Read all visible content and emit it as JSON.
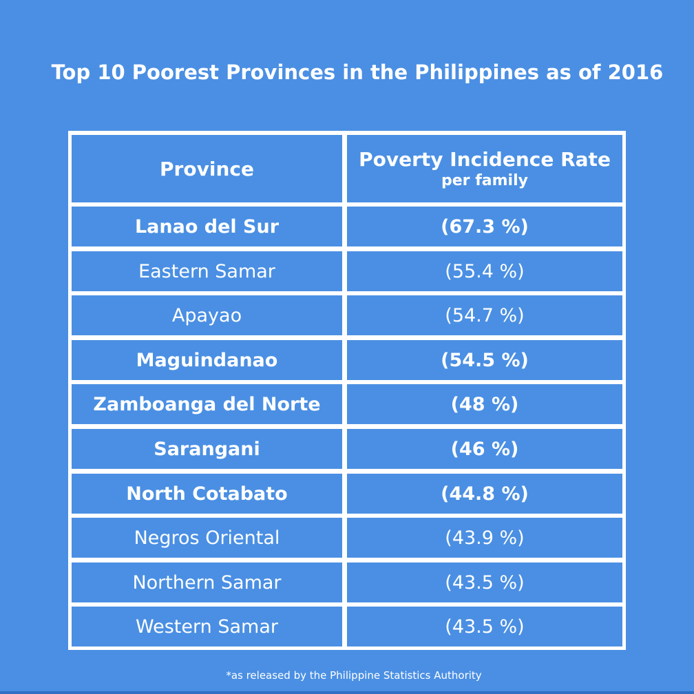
{
  "title": "Top 10 Poorest Provinces in the Philippines as of 2016",
  "table": {
    "header": {
      "province": "Province",
      "rate_main": "Poverty Incidence Rate",
      "rate_sub": "per family"
    },
    "rows": [
      {
        "province": "Lanao del Sur",
        "rate": "(67.3 %)",
        "bold": true
      },
      {
        "province": "Eastern Samar",
        "rate": "(55.4 %)",
        "bold": false
      },
      {
        "province": "Apayao",
        "rate": "(54.7 %)",
        "bold": false
      },
      {
        "province": "Maguindanao",
        "rate": "(54.5 %)",
        "bold": true
      },
      {
        "province": "Zamboanga del Norte",
        "rate": "(48 %)",
        "bold": true
      },
      {
        "province": "Sarangani",
        "rate": "(46 %)",
        "bold": true
      },
      {
        "province": "North Cotabato",
        "rate": "(44.8 %)",
        "bold": true
      },
      {
        "province": "Negros Oriental",
        "rate": "(43.9 %)",
        "bold": false
      },
      {
        "province": "Northern Samar",
        "rate": "(43.5 %)",
        "bold": false
      },
      {
        "province": "Western Samar",
        "rate": "(43.5 %)",
        "bold": false
      }
    ]
  },
  "footnote": "*as released by the Philippine Statistics Authority",
  "colors": {
    "background": "#4a8fe3",
    "grid": "#ffffff",
    "text": "#ffffff"
  }
}
